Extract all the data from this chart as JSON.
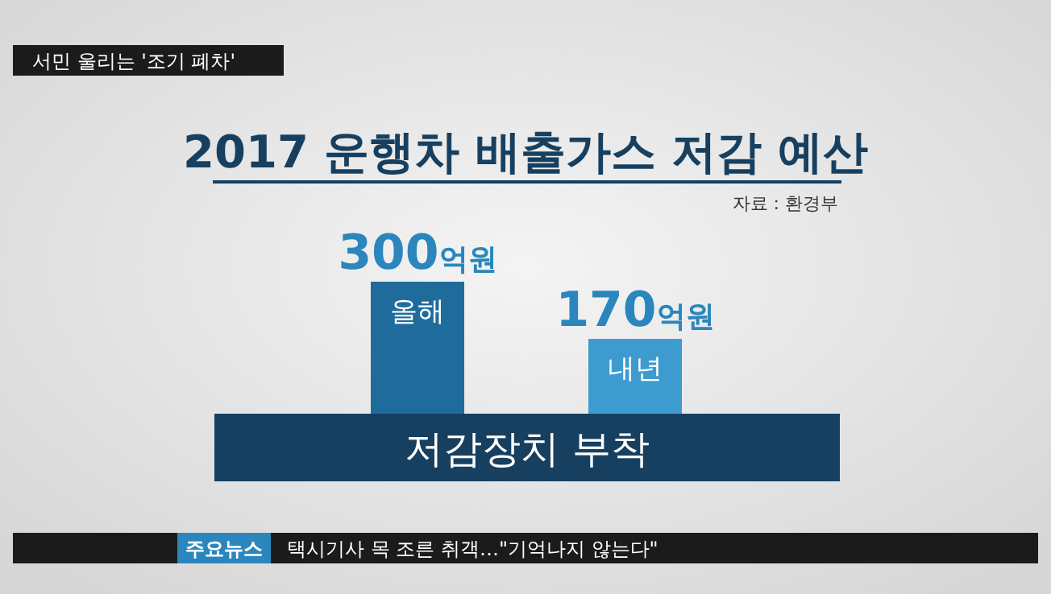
{
  "chart_data": {
    "type": "bar",
    "title": "2017 운행차 배출가스 저감 예산",
    "xlabel": "저감장치 부착",
    "categories": [
      "올해",
      "내년"
    ],
    "values": [
      300,
      170
    ],
    "value_labels": [
      "300억원",
      "170억원"
    ],
    "colors": [
      "#1f6c9c",
      "#3d9bcf"
    ],
    "annotations": [
      "자료 : 환경부",
      "서민 울리는 '조기 폐차'",
      "주요뉴스",
      "택시기사 목 조른 취객…\"기억나지 않는다\""
    ]
  }
}
